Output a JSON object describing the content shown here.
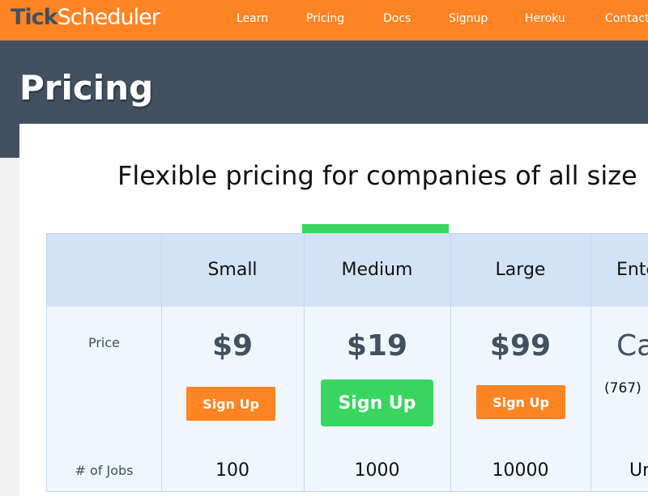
{
  "nav": {
    "logo_tick": "Tick",
    "logo_scheduler": "Scheduler",
    "links": [
      "Learn",
      "Pricing",
      "Docs",
      "Signup",
      "Heroku",
      "Contact"
    ]
  },
  "page_title": "Pricing",
  "heading": "Flexible pricing for companies of all size",
  "table": {
    "plans": [
      "Small",
      "Medium",
      "Large",
      "Ente"
    ],
    "row_labels": {
      "price": "Price",
      "jobs": "# of Jobs"
    },
    "prices": [
      "$9",
      "$19",
      "$99",
      "Ca"
    ],
    "enterprise_phone": "(767)",
    "signup_label": "Sign Up",
    "jobs": [
      "100",
      "1000",
      "10000",
      "Un"
    ],
    "highlighted_plan": "Medium"
  },
  "colors": {
    "brand": "#ff8424",
    "header_band": "#435060",
    "highlight": "#38d561"
  }
}
